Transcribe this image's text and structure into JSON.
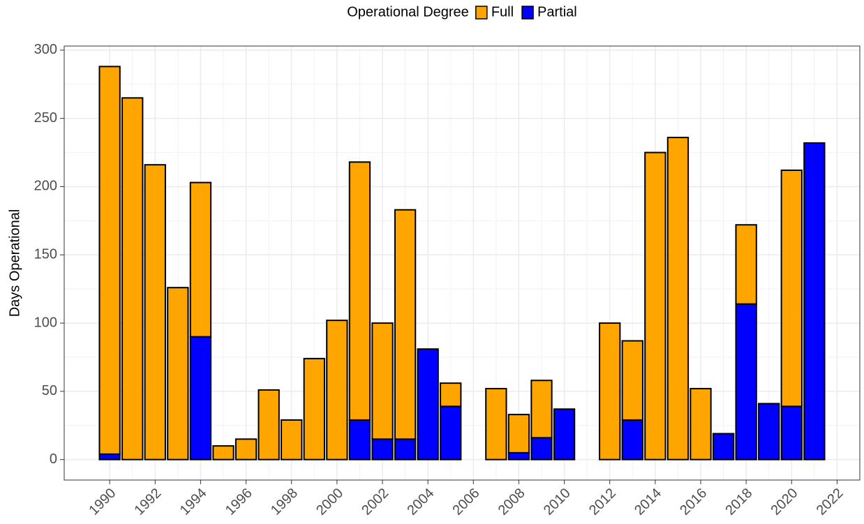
{
  "chart_data": {
    "type": "stacked_bar",
    "y_label": "Days Operational",
    "legend_title": "Operational Degree",
    "x": [
      1990,
      1991,
      1992,
      1993,
      1994,
      1995,
      1996,
      1997,
      1998,
      1999,
      2000,
      2001,
      2002,
      2003,
      2004,
      2005,
      2007,
      2008,
      2009,
      2010,
      2012,
      2013,
      2014,
      2015,
      2016,
      2017,
      2018,
      2019,
      2020,
      2021
    ],
    "series": [
      {
        "name": "Full",
        "color": "#ffa500",
        "values": [
          284,
          265,
          216,
          126,
          113,
          10,
          15,
          51,
          29,
          74,
          102,
          189,
          85,
          168,
          null,
          17,
          52,
          28,
          42,
          null,
          100,
          58,
          225,
          236,
          52,
          null,
          58,
          null,
          173,
          null
        ]
      },
      {
        "name": "Partial",
        "color": "#0000ff",
        "values": [
          4,
          null,
          null,
          null,
          90,
          null,
          null,
          null,
          null,
          null,
          null,
          29,
          15,
          15,
          81,
          39,
          null,
          5,
          16,
          37,
          null,
          29,
          null,
          null,
          null,
          19,
          114,
          41,
          39,
          232
        ]
      }
    ],
    "xlim": [
      1988,
      2023
    ],
    "xticks": [
      1990,
      1992,
      1994,
      1996,
      1998,
      2000,
      2002,
      2004,
      2006,
      2008,
      2010,
      2012,
      2014,
      2016,
      2018,
      2020,
      2022
    ],
    "ylim": [
      -15,
      303
    ],
    "yticks": [
      0,
      50,
      100,
      150,
      200,
      250,
      300
    ],
    "grid": true,
    "legend_position": "top"
  }
}
